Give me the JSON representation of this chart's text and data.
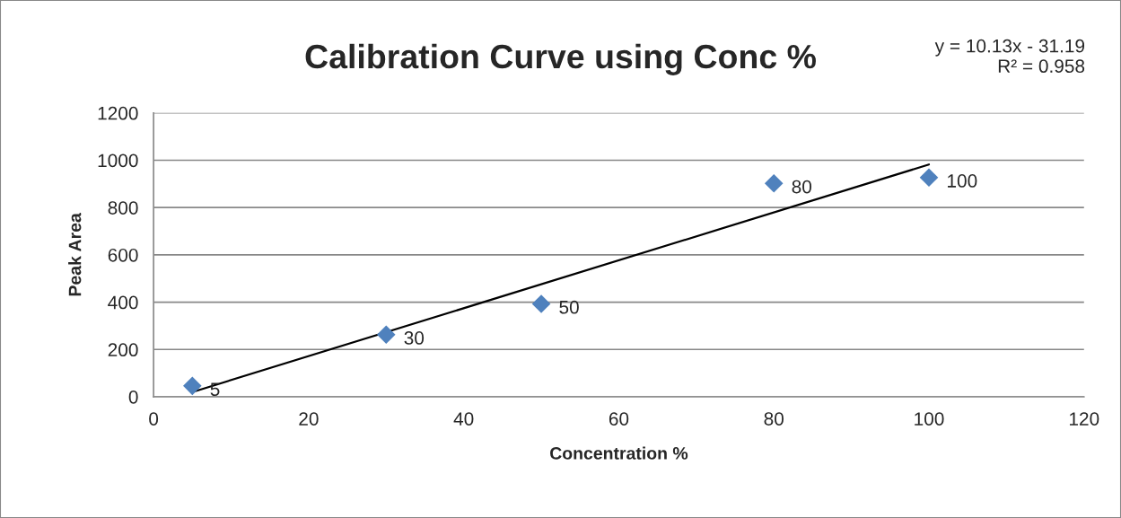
{
  "chart_data": {
    "type": "scatter",
    "title": "Calibration Curve using Conc %",
    "xlabel": "Concentration %",
    "ylabel": "Peak Area",
    "annotations": [
      "y = 10.13x - 31.19\nR² = 0.958",
      {
        "text": "5",
        "x": 5,
        "y": 46
      },
      {
        "text": "30",
        "x": 30,
        "y": 263
      },
      {
        "text": "50",
        "x": 50,
        "y": 393
      },
      {
        "text": "80",
        "x": 80,
        "y": 902
      },
      {
        "text": "100",
        "x": 100,
        "y": 927
      }
    ],
    "series": [
      {
        "marker": "diamond",
        "color": "#4f81bd",
        "x": [
          5,
          30,
          50,
          80,
          100
        ],
        "values": [
          46,
          263,
          393,
          902,
          927
        ]
      },
      {
        "type": "line",
        "marker": "none",
        "line_style": "solid",
        "color": "#000000",
        "x": [
          5,
          100
        ],
        "values": [
          20,
          982
        ]
      }
    ],
    "xlim": [
      0,
      120
    ],
    "xticks": [
      0,
      20,
      40,
      60,
      80,
      100,
      120
    ],
    "ylim": [
      0,
      1200
    ],
    "yticks": [
      0,
      200,
      400,
      600,
      800,
      1000,
      1200
    ],
    "grid": "y",
    "legend": false
  }
}
